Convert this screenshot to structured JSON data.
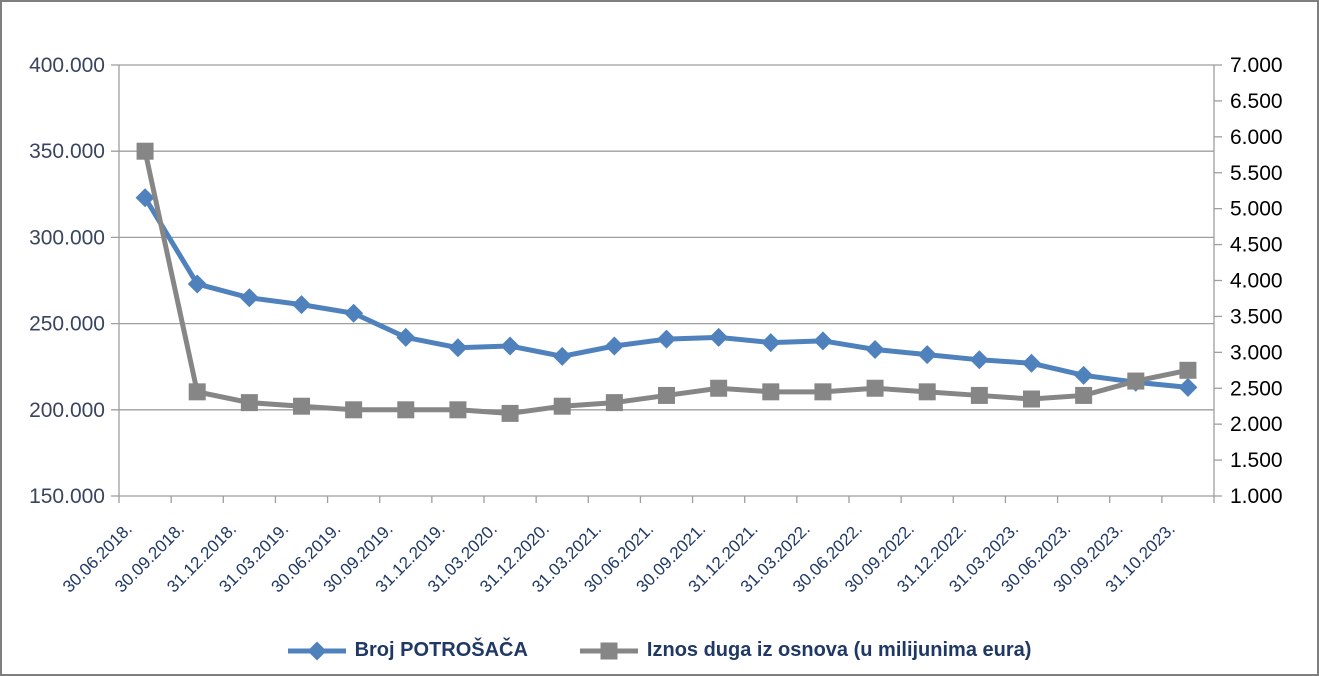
{
  "chart_data": {
    "type": "line",
    "title": "",
    "categories": [
      "30.06.2018.",
      "30.09.2018.",
      "31.12.2018.",
      "31.03.2019.",
      "30.06.2019.",
      "30.09.2019.",
      "31.12.2019.",
      "31.03.2020.",
      "31.12.2020.",
      "31.03.2021.",
      "30.06.2021.",
      "30.09.2021.",
      "31.12.2021.",
      "31.03.2022.",
      "30.06.2022.",
      "30.09.2022.",
      "31.12.2022.",
      "31.03.2023.",
      "30.06.2023.",
      "30.09.2023.",
      "31.10.2023."
    ],
    "series": [
      {
        "name": "Broj POTROŠAČA",
        "marker": "diamond",
        "color": "#4F81BD",
        "axis": "left",
        "values": [
          323000,
          273000,
          265000,
          261000,
          256000,
          242000,
          236000,
          237000,
          231000,
          237000,
          241000,
          242000,
          239000,
          240000,
          235000,
          232000,
          229000,
          227000,
          220000,
          216000,
          213000
        ]
      },
      {
        "name": "Iznos duga iz osnova (u milijunima eura)",
        "marker": "square",
        "color": "#868686",
        "axis": "right",
        "values": [
          5800,
          2450,
          2300,
          2250,
          2200,
          2200,
          2200,
          2150,
          2250,
          2300,
          2400,
          2500,
          2450,
          2450,
          2500,
          2450,
          2400,
          2350,
          2400,
          2600,
          2750
        ]
      }
    ],
    "left_axis": {
      "min": 150000,
      "max": 400000,
      "step": 50000,
      "ticks": [
        {
          "value": 400000,
          "label": "400.000"
        },
        {
          "value": 350000,
          "label": "350.000"
        },
        {
          "value": 300000,
          "label": "300.000"
        },
        {
          "value": 250000,
          "label": "250.000"
        },
        {
          "value": 200000,
          "label": "200.000"
        },
        {
          "value": 150000,
          "label": "150.000"
        }
      ]
    },
    "right_axis": {
      "min": 1000,
      "max": 7000,
      "step": 500,
      "ticks": [
        {
          "value": 7000,
          "label": "7.000"
        },
        {
          "value": 6500,
          "label": "6.500"
        },
        {
          "value": 6000,
          "label": "6.000"
        },
        {
          "value": 5500,
          "label": "5.500"
        },
        {
          "value": 5000,
          "label": "5.000"
        },
        {
          "value": 4500,
          "label": "4.500"
        },
        {
          "value": 4000,
          "label": "4.000"
        },
        {
          "value": 3500,
          "label": "3.500"
        },
        {
          "value": 3000,
          "label": "3.000"
        },
        {
          "value": 2500,
          "label": "2.500"
        },
        {
          "value": 2000,
          "label": "2.000"
        },
        {
          "value": 1500,
          "label": "1.500"
        },
        {
          "value": 1000,
          "label": "1.000"
        }
      ]
    },
    "grid": "horizontal",
    "legend_position": "bottom",
    "colors": {
      "grid": "#9e9e9e",
      "axis": "#9e9e9e",
      "left_tick_text": "#39455E",
      "right_tick_text": "#000000",
      "x_tick_text": "#1F3864",
      "legend_text": "#1F3864",
      "frame_border": "#7f7f7f"
    }
  }
}
